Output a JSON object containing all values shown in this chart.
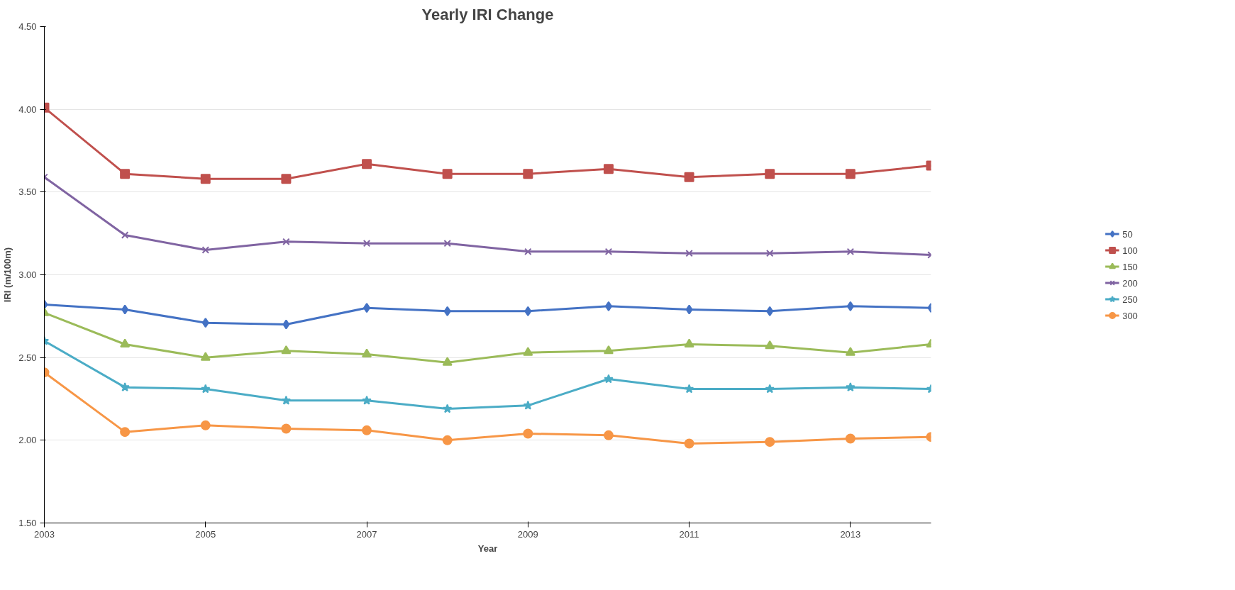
{
  "chart_data": {
    "type": "line",
    "title": "Yearly IRI Change",
    "xlabel": "Year",
    "ylabel": "IRI (m/100m)",
    "x": [
      2003,
      2004,
      2005,
      2006,
      2007,
      2008,
      2009,
      2010,
      2011,
      2012,
      2013,
      2014
    ],
    "xlim": [
      2003,
      2014
    ],
    "xticks": [
      2003,
      2005,
      2007,
      2009,
      2011,
      2013
    ],
    "ylim": [
      1.5,
      4.5
    ],
    "yticks": [
      {
        "value": 1.5,
        "label": "1.50"
      },
      {
        "value": 2.0,
        "label": "2.00"
      },
      {
        "value": 2.5,
        "label": "2.50"
      },
      {
        "value": 3.0,
        "label": "3.00"
      },
      {
        "value": 3.5,
        "label": "3.50"
      },
      {
        "value": 4.0,
        "label": "4.00"
      },
      {
        "value": 4.5,
        "label": "4.50"
      }
    ],
    "grid": "y",
    "legend": "right",
    "series": [
      {
        "name": "50",
        "color": "#4472c4",
        "marker": "diamond",
        "values": [
          2.82,
          2.79,
          2.71,
          2.7,
          2.8,
          2.78,
          2.78,
          2.81,
          2.79,
          2.78,
          2.81,
          2.8
        ]
      },
      {
        "name": "100",
        "color": "#c0504d",
        "marker": "square",
        "values": [
          4.01,
          3.61,
          3.58,
          3.58,
          3.67,
          3.61,
          3.61,
          3.64,
          3.59,
          3.61,
          3.61,
          3.66
        ]
      },
      {
        "name": "150",
        "color": "#9bbb59",
        "marker": "triangle",
        "values": [
          2.77,
          2.58,
          2.5,
          2.54,
          2.52,
          2.47,
          2.53,
          2.54,
          2.58,
          2.57,
          2.53,
          2.58
        ]
      },
      {
        "name": "200",
        "color": "#8064a2",
        "marker": "cross",
        "values": [
          3.59,
          3.24,
          3.15,
          3.2,
          3.19,
          3.19,
          3.14,
          3.14,
          3.13,
          3.13,
          3.14,
          3.12
        ]
      },
      {
        "name": "250",
        "color": "#4bacc6",
        "marker": "star",
        "values": [
          2.6,
          2.32,
          2.31,
          2.24,
          2.24,
          2.19,
          2.21,
          2.37,
          2.31,
          2.31,
          2.32,
          2.31
        ]
      },
      {
        "name": "300",
        "color": "#f79646",
        "marker": "circle",
        "values": [
          2.41,
          2.05,
          2.09,
          2.07,
          2.06,
          2.0,
          2.04,
          2.03,
          1.98,
          1.99,
          2.01,
          2.02
        ]
      }
    ]
  }
}
